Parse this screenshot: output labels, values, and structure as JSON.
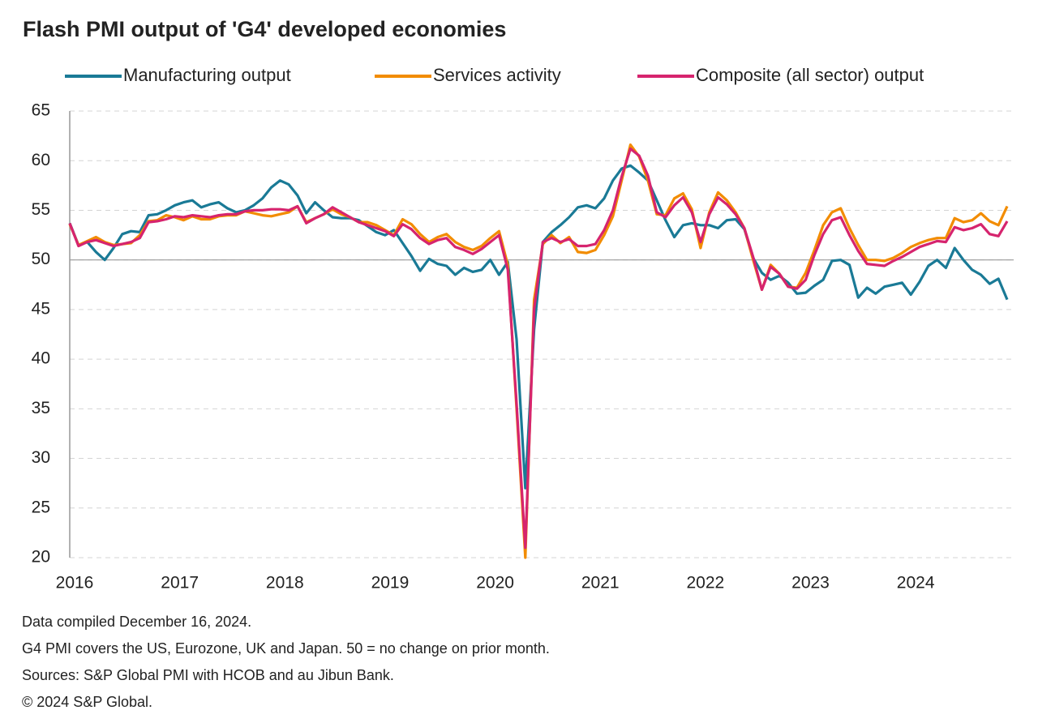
{
  "chart_data": {
    "type": "line",
    "title": "Flash PMI output of 'G4' developed economies",
    "categories": [
      "2016",
      null,
      null,
      null,
      null,
      null,
      null,
      null,
      null,
      null,
      null,
      null,
      "2017",
      null,
      null,
      null,
      null,
      null,
      null,
      null,
      null,
      null,
      null,
      null,
      "2018",
      null,
      null,
      null,
      null,
      null,
      null,
      null,
      null,
      null,
      null,
      null,
      "2019",
      null,
      null,
      null,
      null,
      null,
      null,
      null,
      null,
      null,
      null,
      null,
      "2020",
      null,
      null,
      null,
      null,
      null,
      null,
      null,
      null,
      null,
      null,
      null,
      "2021",
      null,
      null,
      null,
      null,
      null,
      null,
      null,
      null,
      null,
      null,
      null,
      "2022",
      null,
      null,
      null,
      null,
      null,
      null,
      null,
      null,
      null,
      null,
      null,
      "2023",
      null,
      null,
      null,
      null,
      null,
      null,
      null,
      null,
      null,
      null,
      null,
      "2024",
      null,
      null,
      null,
      null,
      null,
      null,
      null,
      null,
      null,
      null,
      null
    ],
    "series": [
      {
        "name": "Manufacturing output",
        "color": "#1a7a96",
        "values": [
          53.7,
          51.5,
          51.8,
          50.8,
          50.0,
          51.2,
          52.6,
          52.9,
          52.8,
          54.5,
          54.6,
          55.0,
          55.5,
          55.8,
          56.0,
          55.3,
          55.6,
          55.8,
          55.2,
          54.8,
          55.0,
          55.5,
          56.2,
          57.3,
          58.0,
          57.6,
          56.5,
          54.7,
          55.8,
          55.0,
          54.3,
          54.2,
          54.2,
          54.0,
          53.4,
          52.8,
          52.5,
          53.0,
          51.7,
          50.4,
          48.9,
          50.1,
          49.6,
          49.4,
          48.5,
          49.2,
          48.8,
          49.0,
          50.0,
          48.5,
          49.8,
          42.0,
          27.0,
          43.0,
          51.8,
          52.8,
          53.5,
          54.3,
          55.3,
          55.5,
          55.2,
          56.2,
          58.0,
          59.2,
          59.5,
          58.8,
          58.0,
          56.0,
          54.0,
          52.3,
          53.5,
          53.7,
          53.5,
          53.5,
          53.2,
          54.0,
          54.1,
          53.1,
          50.2,
          48.7,
          48.0,
          48.4,
          47.7,
          46.6,
          46.7,
          47.4,
          48.0,
          49.9,
          50.0,
          49.5,
          46.2,
          47.2,
          46.6,
          47.3,
          47.5,
          47.7,
          46.5,
          47.8,
          49.4,
          50.0,
          49.2,
          51.2,
          50.0,
          49.0,
          48.5,
          47.6,
          48.1,
          46.0
        ]
      },
      {
        "name": "Services activity",
        "color": "#f28c00",
        "values": [
          53.6,
          51.5,
          51.9,
          52.3,
          51.8,
          51.5,
          51.6,
          51.7,
          52.5,
          53.9,
          54.0,
          54.5,
          54.3,
          54.0,
          54.4,
          54.1,
          54.1,
          54.4,
          54.5,
          54.5,
          54.9,
          54.7,
          54.5,
          54.4,
          54.6,
          54.8,
          55.4,
          53.8,
          54.2,
          54.6,
          55.1,
          54.6,
          54.3,
          53.8,
          53.8,
          53.5,
          53.0,
          52.5,
          54.1,
          53.6,
          52.6,
          51.8,
          52.3,
          52.6,
          51.8,
          51.3,
          51.0,
          51.4,
          52.2,
          52.9,
          49.5,
          35.0,
          20.0,
          46.0,
          51.6,
          52.5,
          51.7,
          52.3,
          50.8,
          50.7,
          51.0,
          52.5,
          54.4,
          58.0,
          61.6,
          60.4,
          58.0,
          54.6,
          54.5,
          56.2,
          56.7,
          55.1,
          51.2,
          54.8,
          56.8,
          56.0,
          54.8,
          53.2,
          50.0,
          47.0,
          49.5,
          48.6,
          47.3,
          47.2,
          48.7,
          51.0,
          53.5,
          54.8,
          55.2,
          53.2,
          51.5,
          50.0,
          50.0,
          49.9,
          50.2,
          50.7,
          51.3,
          51.7,
          52.0,
          52.2,
          52.2,
          54.2,
          53.8,
          54.0,
          54.7,
          53.9,
          53.5,
          55.4
        ]
      },
      {
        "name": "Composite (all sector) output",
        "color": "#d6246e",
        "values": [
          53.7,
          51.4,
          51.8,
          52.0,
          51.7,
          51.4,
          51.6,
          51.8,
          52.2,
          53.8,
          53.9,
          54.1,
          54.4,
          54.3,
          54.5,
          54.4,
          54.3,
          54.5,
          54.6,
          54.6,
          54.9,
          55.0,
          55.0,
          55.1,
          55.1,
          55.0,
          55.4,
          53.7,
          54.2,
          54.6,
          55.3,
          54.8,
          54.3,
          53.8,
          53.5,
          53.2,
          52.9,
          52.4,
          53.6,
          53.1,
          52.2,
          51.6,
          52.0,
          52.2,
          51.3,
          51.0,
          50.6,
          51.1,
          51.8,
          52.5,
          49.0,
          35.5,
          21.0,
          45.0,
          51.8,
          52.2,
          51.8,
          52.1,
          51.4,
          51.4,
          51.6,
          53.0,
          55.0,
          58.4,
          61.2,
          60.5,
          58.5,
          54.8,
          54.3,
          55.5,
          56.3,
          54.8,
          51.8,
          54.6,
          56.3,
          55.6,
          54.6,
          53.2,
          50.3,
          47.0,
          49.3,
          48.6,
          47.3,
          47.1,
          48.0,
          50.5,
          52.6,
          54.0,
          54.3,
          52.5,
          50.9,
          49.6,
          49.5,
          49.4,
          49.9,
          50.3,
          50.8,
          51.3,
          51.6,
          51.9,
          51.8,
          53.3,
          53.0,
          53.2,
          53.6,
          52.6,
          52.4,
          53.9
        ]
      }
    ],
    "ylim": [
      20,
      65
    ],
    "yticks": [
      20,
      25,
      30,
      35,
      40,
      45,
      50,
      55,
      60,
      65
    ],
    "grid": true,
    "reference_line": 50,
    "notes": [
      "Data compiled December 16, 2024.",
      "G4 PMI covers the US, Eurozone, UK and Japan. 50 = no change on prior month.",
      "Sources: S&P Global PMI with HCOB and au Jibun Bank.",
      "© 2024 S&P Global."
    ]
  }
}
